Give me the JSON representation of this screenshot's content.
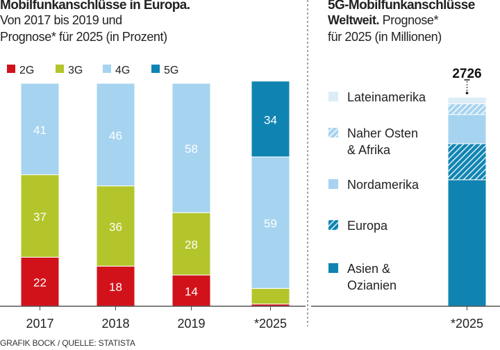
{
  "header": {
    "left_title": "Mobilfunkanschlüsse in Europa.",
    "left_subtitle_line1": "Von 2017 bis 2019 und",
    "left_subtitle_line2": "Prognose* für 2025 (in Prozent)",
    "right_title": "5G-Mobilfunkanschlüsse",
    "right_subtitle_line1_bold": "Weltweit.",
    "right_subtitle_line1": " Prognose*",
    "right_subtitle_line2": "für 2025 (in Millionen)"
  },
  "source": "GRAFIK BOCK / QUELLE: STATISTA",
  "chart_data": [
    {
      "type": "bar",
      "stacked": true,
      "title": "Mobilfunkanschlüsse in Europa.",
      "unit": "Prozent",
      "categories": [
        "2017",
        "2018",
        "2019",
        "*2025"
      ],
      "ylim": [
        0,
        100
      ],
      "legend": "top",
      "series": [
        {
          "name": "2G",
          "color": "#d2121b",
          "values": [
            22,
            18,
            14,
            1
          ]
        },
        {
          "name": "3G",
          "color": "#b3c52b",
          "values": [
            37,
            36,
            28,
            7
          ]
        },
        {
          "name": "4G",
          "color": "#a6d3ef",
          "values": [
            41,
            46,
            58,
            59
          ]
        },
        {
          "name": "5G",
          "color": "#0f84b2",
          "values": [
            0,
            0,
            0,
            34
          ]
        }
      ]
    },
    {
      "type": "bar",
      "stacked": true,
      "title": "5G-Mobilfunkanschlüsse Weltweit.",
      "unit": "Millionen",
      "categories": [
        "*2025"
      ],
      "total": "2726",
      "legend": "left",
      "series": [
        {
          "name": "Asien & Ozianien",
          "lines": [
            "Asien &",
            "Ozianien"
          ],
          "color": "#0f84b2",
          "pattern": "solid",
          "values": [
            1650
          ]
        },
        {
          "name": "Europa",
          "lines": [
            "Europa"
          ],
          "color": "#0f84b2",
          "pattern": "hatch",
          "values": [
            470
          ]
        },
        {
          "name": "Nordamerika",
          "lines": [
            "Nordamerika"
          ],
          "color": "#a6d3ef",
          "pattern": "solid",
          "values": [
            380
          ]
        },
        {
          "name": "Naher Osten & Afrika",
          "lines": [
            "Naher Osten",
            "& Afrika"
          ],
          "color": "#a6d3ef",
          "pattern": "hatch",
          "values": [
            140
          ]
        },
        {
          "name": "Lateinamerika",
          "lines": [
            "Lateinamerika"
          ],
          "color": "#dcedf8",
          "pattern": "solid",
          "values": [
            86
          ]
        }
      ]
    }
  ]
}
